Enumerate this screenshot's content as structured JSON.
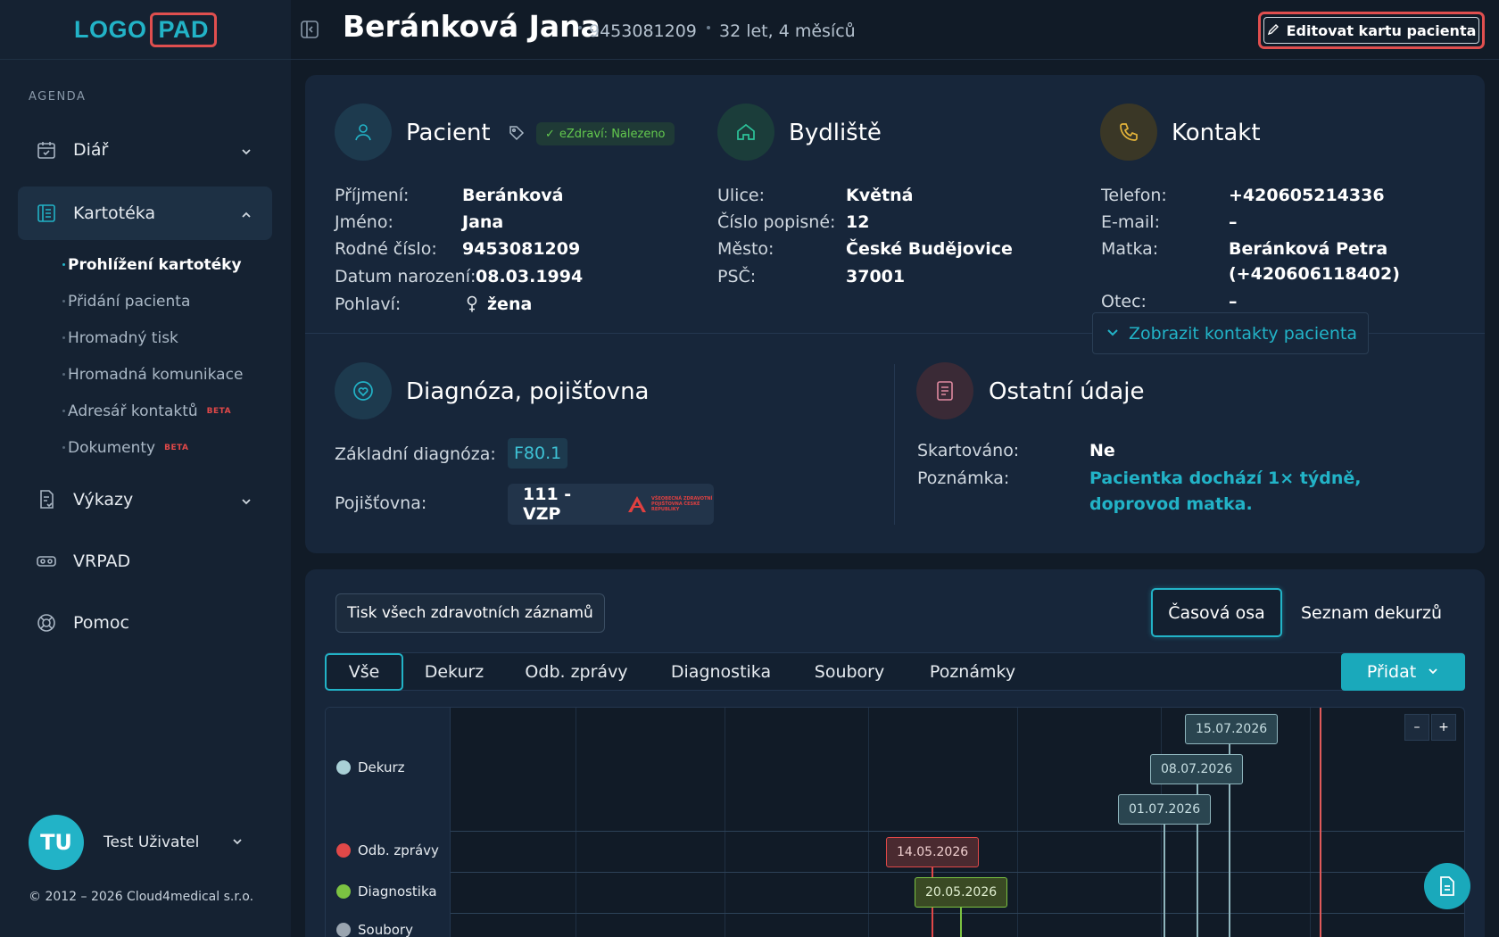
{
  "sidebar": {
    "logo_a": "LOGO",
    "logo_b": "PAD",
    "section_label": "AGENDA",
    "items": [
      {
        "label": "Diář"
      },
      {
        "label": "Kartotéka"
      },
      {
        "label": "Výkazy"
      },
      {
        "label": "VRPAD"
      },
      {
        "label": "Pomoc"
      }
    ],
    "sub_items": [
      {
        "label": "Prohlížení kartotéky"
      },
      {
        "label": "Přidání pacienta"
      },
      {
        "label": "Hromadný tisk"
      },
      {
        "label": "Hromadná komunikace"
      },
      {
        "label": "Adresář kontaktů",
        "badge": "BETA"
      },
      {
        "label": "Dokumenty",
        "badge": "BETA"
      }
    ],
    "user": {
      "initials": "TU",
      "name": "Test Uživatel"
    },
    "copyright": "© 2012 – 2026 Cloud4medical s.r.o."
  },
  "header": {
    "patient_name": "Beránková Jana",
    "patient_id": "9453081209",
    "age": "32 let, 4 měsíců",
    "edit_button": "Editovat kartu pacienta"
  },
  "patient": {
    "title": "Pacient",
    "badge": "eZdraví: Nalezeno",
    "fields": [
      {
        "label": "Příjmení:",
        "value": "Beránková"
      },
      {
        "label": "Jméno:",
        "value": "Jana"
      },
      {
        "label": "Rodné číslo:",
        "value": "9453081209"
      },
      {
        "label": "Datum narození:",
        "value": "08.03.1994"
      },
      {
        "label": "Pohlaví:",
        "value": "žena"
      }
    ]
  },
  "address": {
    "title": "Bydliště",
    "fields": [
      {
        "label": "Ulice:",
        "value": "Květná"
      },
      {
        "label": "Číslo popisné:",
        "value": "12"
      },
      {
        "label": "Město:",
        "value": "České Budějovice"
      },
      {
        "label": "PSČ:",
        "value": "37001"
      }
    ]
  },
  "contact": {
    "title": "Kontakt",
    "fields": [
      {
        "label": "Telefon:",
        "value": "+420605214336"
      },
      {
        "label": "E-mail:",
        "value": "–"
      },
      {
        "label": "Matka:",
        "value": "Beránková Petra",
        "value2": "(+420606118402)"
      },
      {
        "label": "Otec:",
        "value": "–"
      }
    ],
    "show_contacts": "Zobrazit kontakty pacienta"
  },
  "diagnosis": {
    "title": "Diagnóza, pojišťovna",
    "diag_label": "Základní diagnóza:",
    "diag_value": "F80.1",
    "ins_label": "Pojišťovna:",
    "ins_value": "111 - VZP",
    "ins_logo_text": "VŠEOBECNÁ ZDRAVOTNÍ POJIŠŤOVNA ČESKÉ REPUBLIKY"
  },
  "other": {
    "title": "Ostatní údaje",
    "shred_label": "Skartováno:",
    "shred_value": "Ne",
    "note_label": "Poznámka:",
    "note_value": "Pacientka dochází 1× týdně, doprovod matka."
  },
  "records": {
    "print_all": "Tisk všech zdravotních záznamů",
    "view_timeline": "Časová osa",
    "view_list": "Seznam dekurzů",
    "tabs": [
      "Vše",
      "Dekurz",
      "Odb. zprávy",
      "Diagnostika",
      "Soubory",
      "Poznámky"
    ],
    "add_button": "Přidat",
    "zoom_out": "–",
    "zoom_in": "+"
  },
  "timeline": {
    "rows": [
      {
        "label": "Dekurz",
        "color": "#a9d0d6"
      },
      {
        "label": "Odb. zprávy",
        "color": "#e04848"
      },
      {
        "label": "Diagnostika",
        "color": "#7cc242"
      },
      {
        "label": "Soubory",
        "color": "#9aa5b0"
      }
    ],
    "events": [
      {
        "row": "Dekurz",
        "date": "15.07.2026"
      },
      {
        "row": "Dekurz",
        "date": "08.07.2026"
      },
      {
        "row": "Dekurz",
        "date": "01.07.2026"
      },
      {
        "row": "Odb. zprávy",
        "date": "14.05.2026"
      },
      {
        "row": "Diagnostika",
        "date": "20.05.2026"
      }
    ]
  },
  "colors": {
    "accent": "#22b3c7",
    "danger": "#e04f4f",
    "background": "#111b27",
    "card": "#17263a"
  }
}
